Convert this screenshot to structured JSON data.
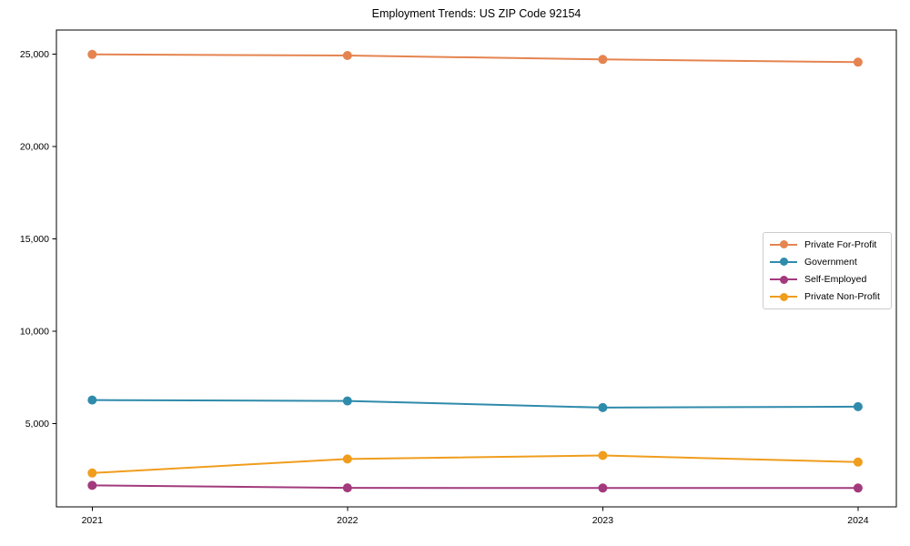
{
  "chart_data": {
    "type": "line",
    "title": "Employment Trends: US ZIP Code 92154",
    "x": [
      2021,
      2022,
      2023,
      2024
    ],
    "x_tick_labels": [
      "2021",
      "2022",
      "2023",
      "2024"
    ],
    "y_ticks": [
      5000,
      10000,
      15000,
      20000,
      25000
    ],
    "y_tick_labels": [
      "5,000",
      "10,000",
      "15,000",
      "20,000",
      "25,000"
    ],
    "xlim": [
      2020.86,
      2024.15
    ],
    "ylim": [
      500,
      26300
    ],
    "grid": false,
    "legend_position": "center right",
    "marker": "circle",
    "series": [
      {
        "name": "Private For-Profit",
        "color": "#e58450",
        "values": [
          24980,
          24920,
          24710,
          24560
        ]
      },
      {
        "name": "Government",
        "color": "#2f8bab",
        "values": [
          6280,
          6230,
          5870,
          5920
        ]
      },
      {
        "name": "Self-Employed",
        "color": "#a23a7d",
        "values": [
          1660,
          1530,
          1520,
          1520
        ]
      },
      {
        "name": "Private Non-Profit",
        "color": "#f09d1d",
        "values": [
          2330,
          3090,
          3280,
          2920
        ]
      }
    ]
  }
}
